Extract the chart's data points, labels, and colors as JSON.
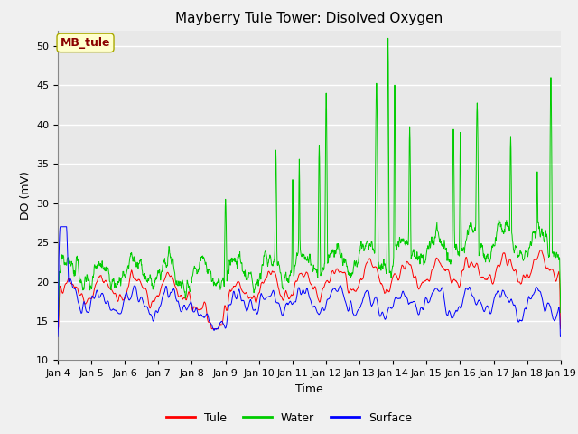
{
  "title": "Mayberry Tule Tower: Disolved Oxygen",
  "xlabel": "Time",
  "ylabel": "DO (mV)",
  "ylim": [
    10,
    52
  ],
  "yticks": [
    10,
    15,
    20,
    25,
    30,
    35,
    40,
    45,
    50
  ],
  "x_labels": [
    "Jan 4",
    "Jan 5",
    "Jan 6",
    "Jan 7",
    "Jan 8",
    "Jan 9",
    "Jan 10",
    "Jan 11",
    "Jan 12",
    "Jan 13",
    "Jan 14",
    "Jan 15",
    "Jan 16",
    "Jan 17",
    "Jan 18",
    "Jan 19"
  ],
  "annotation_text": "MB_tule",
  "annotation_color": "#8B0000",
  "annotation_bg": "#FFFFCC",
  "line_colors": {
    "tule": "#FF0000",
    "water": "#00CC00",
    "surface": "#0000FF"
  },
  "legend_labels": [
    "Tule",
    "Water",
    "Surface"
  ],
  "plot_bg_color": "#E8E8E8",
  "fig_bg_color": "#F0F0F0",
  "grid_color": "#FFFFFF",
  "title_fontsize": 11,
  "axis_fontsize": 9,
  "tick_fontsize": 8
}
